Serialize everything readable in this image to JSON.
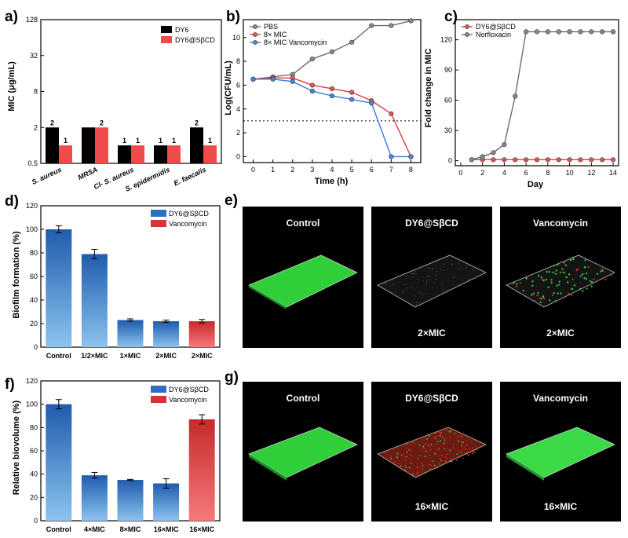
{
  "colors": {
    "dy6": "#000000",
    "dy6_sbcd": "#f04a4a",
    "pbs": "#6e6e6e",
    "mic8": "#e03b3b",
    "vanco": "#3d7ad6",
    "bar_blue": "#2f6fbf",
    "bar_red": "#d73535",
    "green": "#2fcf3a"
  },
  "panels": {
    "a": {
      "label": "a)",
      "chart_data": {
        "type": "bar",
        "ylabel": "MIC (μg/mL)",
        "yscale": "log2",
        "yticks": [
          "0.5",
          "2",
          "8",
          "32",
          "128"
        ],
        "categories": [
          "S. aureus",
          "MRSA",
          "Cl- S. aureus",
          "S. epidermidis",
          "E. faecalis"
        ],
        "series": [
          {
            "name": "DY6",
            "values": [
              2,
              2,
              1,
              1,
              2
            ],
            "labels": [
              "2",
              "",
              "1",
              "1",
              "2"
            ]
          },
          {
            "name": "DY6@SβCD",
            "values": [
              1,
              2,
              1,
              1,
              1
            ],
            "labels": [
              "1",
              "2",
              "1",
              "1",
              "1"
            ]
          }
        ],
        "extra_labels": [
          {
            "cat": 1,
            "text": "2"
          }
        ]
      }
    },
    "b": {
      "label": "b)",
      "chart_data": {
        "type": "line",
        "xlabel": "Time (h)",
        "ylabel": "Log(CFU/mL)",
        "x": [
          0,
          1,
          2,
          3,
          4,
          5,
          6,
          7,
          8
        ],
        "xlim": [
          -0.5,
          8.5
        ],
        "ylim": [
          -0.5,
          11.5
        ],
        "xticks": [
          "0",
          "1",
          "2",
          "3",
          "4",
          "5",
          "6",
          "7",
          "8"
        ],
        "yticks": [
          "0",
          "2",
          "4",
          "6",
          "8",
          "10"
        ],
        "threshold": 3,
        "series": [
          {
            "name": "PBS",
            "values": [
              6.5,
              6.7,
              6.9,
              8.2,
              8.8,
              9.6,
              11.0,
              11.0,
              11.4
            ]
          },
          {
            "name": "8× MIC",
            "values": [
              6.5,
              6.6,
              6.6,
              6.0,
              5.7,
              5.4,
              4.7,
              3.6,
              0.0
            ]
          },
          {
            "name": "8× MIC Vancomycin",
            "values": [
              6.5,
              6.5,
              6.3,
              5.5,
              5.1,
              4.8,
              4.5,
              0.0,
              0.0
            ]
          }
        ]
      }
    },
    "c": {
      "label": "c)",
      "chart_data": {
        "type": "line",
        "xlabel": "Day",
        "ylabel": "Fold change in MIC",
        "x": [
          1,
          2,
          3,
          4,
          5,
          6,
          7,
          8,
          9,
          10,
          11,
          12,
          13,
          14
        ],
        "xlim": [
          -0.5,
          14.5
        ],
        "ylim": [
          -5,
          140
        ],
        "xticks": [
          "0",
          "2",
          "4",
          "6",
          "8",
          "10",
          "12",
          "14"
        ],
        "yticks": [
          "0",
          "30",
          "60",
          "90",
          "120"
        ],
        "series": [
          {
            "name": "DY6@SβCD",
            "values": [
              1,
              1,
              1,
              1,
              1,
              1,
              1,
              1,
              1,
              1,
              1,
              1,
              1,
              1
            ]
          },
          {
            "name": "Norfloxacin",
            "values": [
              1,
              4,
              8,
              16,
              64,
              128,
              128,
              128,
              128,
              128,
              128,
              128,
              128,
              128
            ]
          }
        ]
      }
    },
    "d": {
      "label": "d)",
      "chart_data": {
        "type": "bar",
        "ylabel": "Biofilm formation (%)",
        "ylim": [
          0,
          120
        ],
        "yticks": [
          "0",
          "20",
          "40",
          "60",
          "80",
          "100",
          "120"
        ],
        "categories": [
          "Control",
          "1/2×MIC",
          "1×MIC",
          "2×MIC",
          "2×MIC"
        ],
        "values": [
          100,
          79,
          23,
          22,
          22
        ],
        "errors": [
          3,
          4,
          1,
          1,
          1.5
        ],
        "series_index": [
          0,
          0,
          0,
          0,
          1
        ],
        "legend": [
          "DY6@SβCD",
          "Vancomycin"
        ]
      }
    },
    "e": {
      "label": "e)",
      "images": [
        {
          "title": "Control",
          "caption": ""
        },
        {
          "title": "DY6@SβCD",
          "caption": "2×MIC"
        },
        {
          "title": "Vancomycin",
          "caption": "2×MIC"
        }
      ]
    },
    "f": {
      "label": "f)",
      "chart_data": {
        "type": "bar",
        "ylabel": "Relative biovolume (%)",
        "ylim": [
          0,
          120
        ],
        "yticks": [
          "0",
          "20",
          "40",
          "60",
          "80",
          "100",
          "120"
        ],
        "categories": [
          "Control",
          "4×MIC",
          "8×MIC",
          "16×MIC",
          "16×MIC"
        ],
        "values": [
          100,
          39,
          35,
          32,
          87
        ],
        "errors": [
          4,
          2.5,
          0.5,
          4,
          4
        ],
        "series_index": [
          0,
          0,
          0,
          0,
          1
        ],
        "legend": [
          "DY6@SβCD",
          "Vancomycin"
        ]
      }
    },
    "g": {
      "label": "g)",
      "images": [
        {
          "title": "Control",
          "caption": ""
        },
        {
          "title": "DY6@SβCD",
          "caption": "16×MIC"
        },
        {
          "title": "Vancomycin",
          "caption": "16×MIC"
        }
      ]
    }
  }
}
